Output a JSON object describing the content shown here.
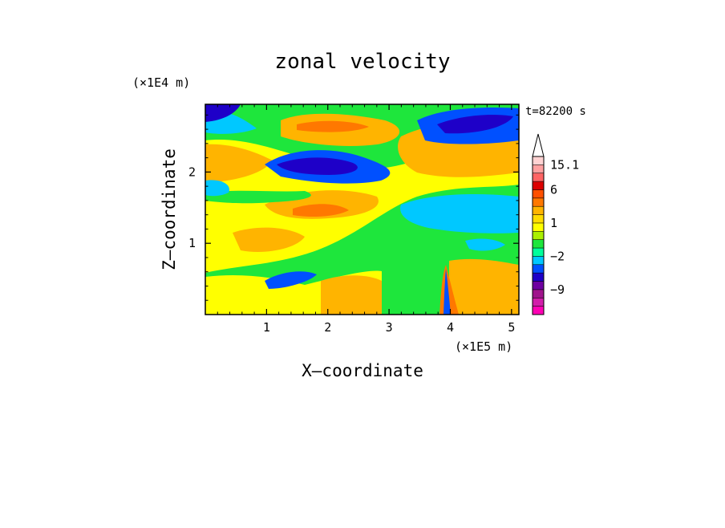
{
  "chart_data": {
    "type": "heatmap",
    "title": "zonal velocity",
    "xlabel": "X–coordinate",
    "ylabel": "Z–coordinate",
    "x_unit": "(×1E5 m)",
    "y_unit": "(×1E4 m)",
    "time_label": "t=82200 s",
    "xlim": [
      0,
      5.12
    ],
    "ylim": [
      0,
      2.95
    ],
    "x_ticks": [
      {
        "value": 1,
        "label": "1"
      },
      {
        "value": 2,
        "label": "2"
      },
      {
        "value": 3,
        "label": "3"
      },
      {
        "value": 4,
        "label": "4"
      },
      {
        "value": 5,
        "label": "5"
      }
    ],
    "y_ticks": [
      {
        "value": 1,
        "label": "1"
      },
      {
        "value": 2,
        "label": "2"
      }
    ],
    "colorbar": {
      "levels": [
        {
          "color": "#ff00b4"
        },
        {
          "color": "#d21eaa"
        },
        {
          "color": "#a0148c"
        },
        {
          "color": "#6e00a0"
        },
        {
          "color": "#1e00c8"
        },
        {
          "color": "#0050ff"
        },
        {
          "color": "#00c8ff"
        },
        {
          "color": "#00ff9b"
        },
        {
          "color": "#1ee63c"
        },
        {
          "color": "#aaf000"
        },
        {
          "color": "#ffff00"
        },
        {
          "color": "#ffdc00"
        },
        {
          "color": "#ffb400"
        },
        {
          "color": "#ff7800"
        },
        {
          "color": "#ff5000"
        },
        {
          "color": "#dc0000"
        },
        {
          "color": "#ff6464"
        },
        {
          "color": "#ffa0a0"
        },
        {
          "color": "#ffd2d2"
        }
      ],
      "labels": [
        {
          "label": "15.1",
          "level": 18
        },
        {
          "label": "6",
          "level": 15
        },
        {
          "label": "1",
          "level": 11
        },
        {
          "label": "−2",
          "level": 7
        },
        {
          "label": "−9",
          "level": 3
        }
      ]
    },
    "field_bands": [
      {
        "name": "upper-orange",
        "color": "#ffb400",
        "z": 2.6
      },
      {
        "name": "upper-blue",
        "color": "#1e00c8",
        "z": 2.15
      },
      {
        "name": "mid-orange",
        "color": "#ffb400",
        "z": 1.5
      },
      {
        "name": "mid-yellow",
        "color": "#ffff00",
        "z": 1.1
      },
      {
        "name": "low-green",
        "color": "#1ee63c",
        "z": 0.6
      },
      {
        "name": "low-blue",
        "color": "#0050ff",
        "z": 0.5
      }
    ]
  }
}
